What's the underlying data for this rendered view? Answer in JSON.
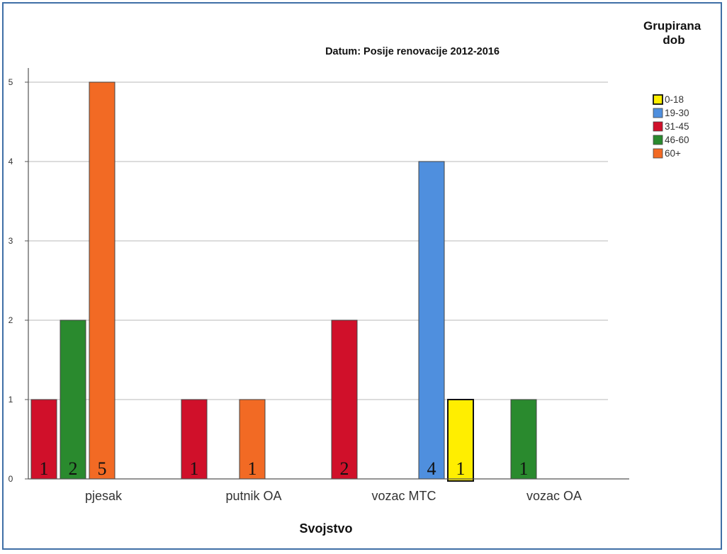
{
  "chart_data": {
    "type": "bar",
    "title": "Datum: Posije renovacije 2012-2016",
    "xlabel": "Svojstvo",
    "ylabel": "",
    "ylim": [
      0,
      5
    ],
    "yticks": [
      0,
      1,
      2,
      3,
      4,
      5
    ],
    "categories": [
      "pjesak",
      "putnik OA",
      "vozac MTC",
      "vozac OA"
    ],
    "legend_title": "Grupirana dob",
    "legend_placement": "right",
    "grid": true,
    "series": [
      {
        "name": "0-18",
        "color": "#ffee00",
        "values": [
          null,
          null,
          1,
          null
        ]
      },
      {
        "name": "19-30",
        "color": "#4f8fde",
        "values": [
          null,
          null,
          4,
          null
        ]
      },
      {
        "name": "31-45",
        "color": "#d0102a",
        "values": [
          1,
          1,
          2,
          null
        ]
      },
      {
        "name": "46-60",
        "color": "#2a8a2e",
        "values": [
          2,
          null,
          null,
          1
        ]
      },
      {
        "name": "60+",
        "color": "#f26a24",
        "values": [
          5,
          1,
          null,
          null
        ]
      }
    ]
  }
}
